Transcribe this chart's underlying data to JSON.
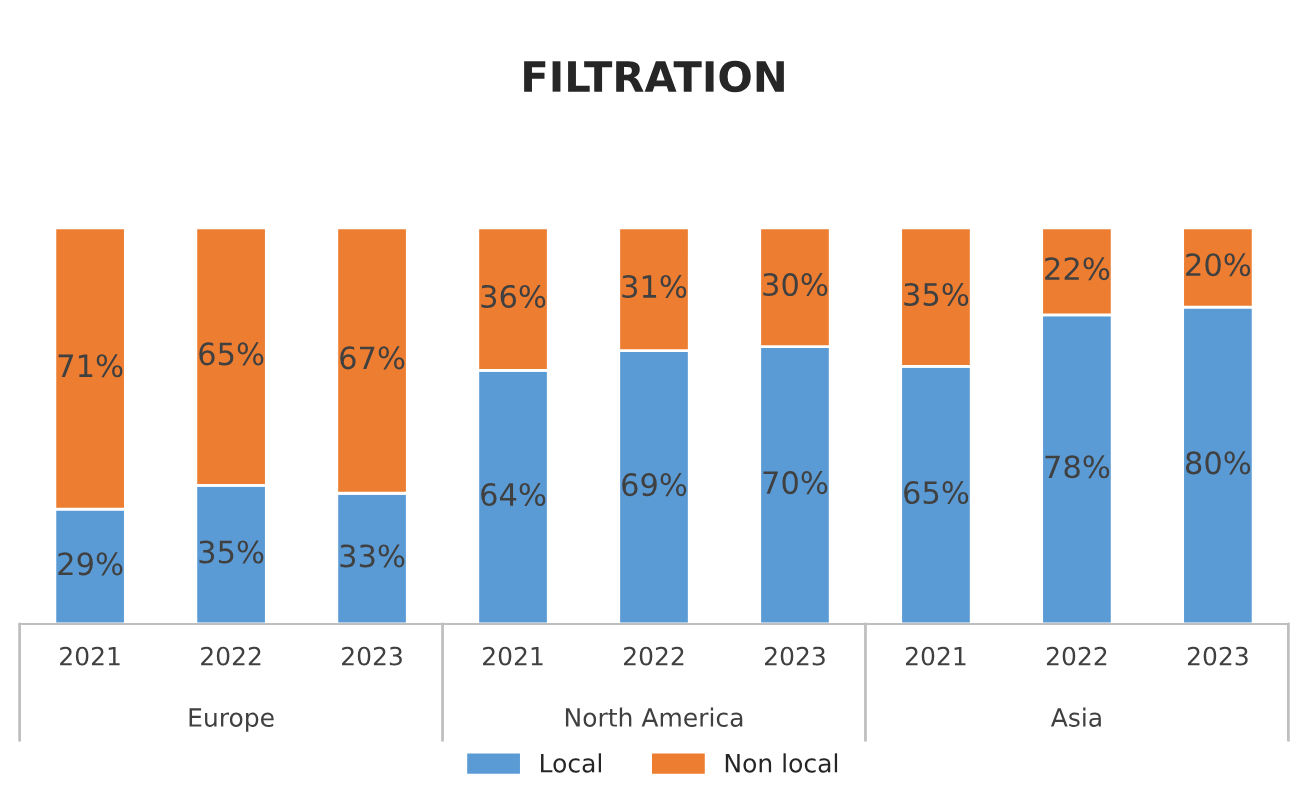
{
  "chart_data": {
    "type": "bar",
    "title": "FILTRATION",
    "stacked": true,
    "legend": "bottom",
    "grid": false,
    "categories": [
      "2021",
      "2022",
      "2023",
      "2021",
      "2022",
      "2023",
      "2021",
      "2022",
      "2023"
    ],
    "series": [
      {
        "name": "Local",
        "color": "#5b9bd5",
        "values": [
          29,
          35,
          33,
          64,
          69,
          70,
          65,
          78,
          80
        ],
        "value_labels": [
          "29%",
          "35%",
          "33%",
          "64%",
          "69%",
          "70%",
          "65%",
          "78%",
          "80%"
        ]
      },
      {
        "name": "Non local",
        "color": "#ed7d31",
        "values": [
          71,
          65,
          67,
          36,
          31,
          30,
          35,
          22,
          20
        ],
        "value_labels": [
          "71%",
          "65%",
          "67%",
          "36%",
          "31%",
          "30%",
          "35%",
          "22%",
          "20%"
        ]
      }
    ],
    "annotations": [
      "Europe",
      "North America",
      "Asia"
    ]
  }
}
